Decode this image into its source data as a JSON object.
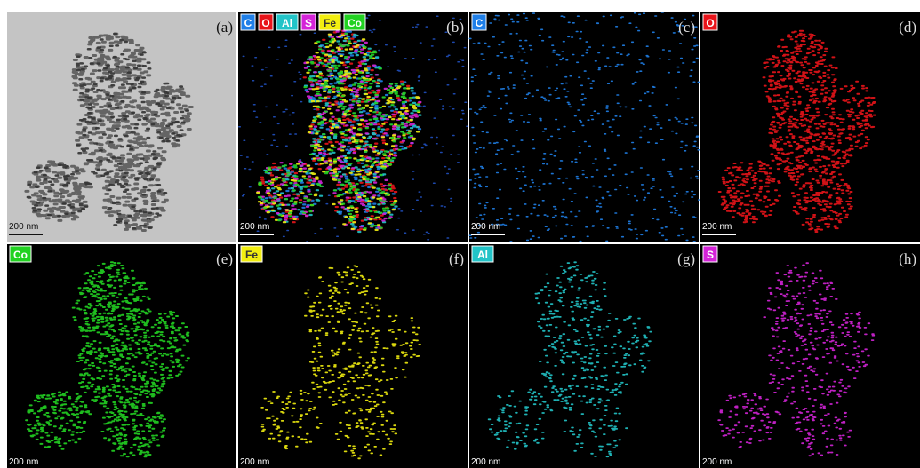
{
  "panels": [
    {
      "label": "(a)",
      "scale_bar": "200 nm",
      "tags": []
    },
    {
      "label": "(b)",
      "scale_bar": "200 nm",
      "tags": [
        {
          "text": "C",
          "color": "#1f7fe8"
        },
        {
          "text": "O",
          "color": "#e8141a"
        },
        {
          "text": "Al",
          "color": "#22c4c8"
        },
        {
          "text": "S",
          "color": "#d424d8"
        },
        {
          "text": "Fe",
          "color": "#f2ee10"
        },
        {
          "text": "Co",
          "color": "#22d222"
        }
      ]
    },
    {
      "label": "(c)",
      "scale_bar": "200 nm",
      "tags": [
        {
          "text": "C",
          "color": "#1f7fe8"
        }
      ]
    },
    {
      "label": "(d)",
      "scale_bar": "200 nm",
      "tags": [
        {
          "text": "O",
          "color": "#e8141a"
        }
      ]
    },
    {
      "label": "(e)",
      "scale_bar": "200 nm",
      "tags": [
        {
          "text": "Co",
          "color": "#22d222"
        }
      ]
    },
    {
      "label": "(f)",
      "scale_bar": "200 nm",
      "tags": [
        {
          "text": "Fe",
          "color": "#f2ee10"
        }
      ]
    },
    {
      "label": "(g)",
      "scale_bar": "200 nm",
      "tags": [
        {
          "text": "Al",
          "color": "#22c4c8"
        }
      ]
    },
    {
      "label": "(h)",
      "scale_bar": "200 nm",
      "tags": [
        {
          "text": "S",
          "color": "#d424d8"
        }
      ]
    }
  ]
}
